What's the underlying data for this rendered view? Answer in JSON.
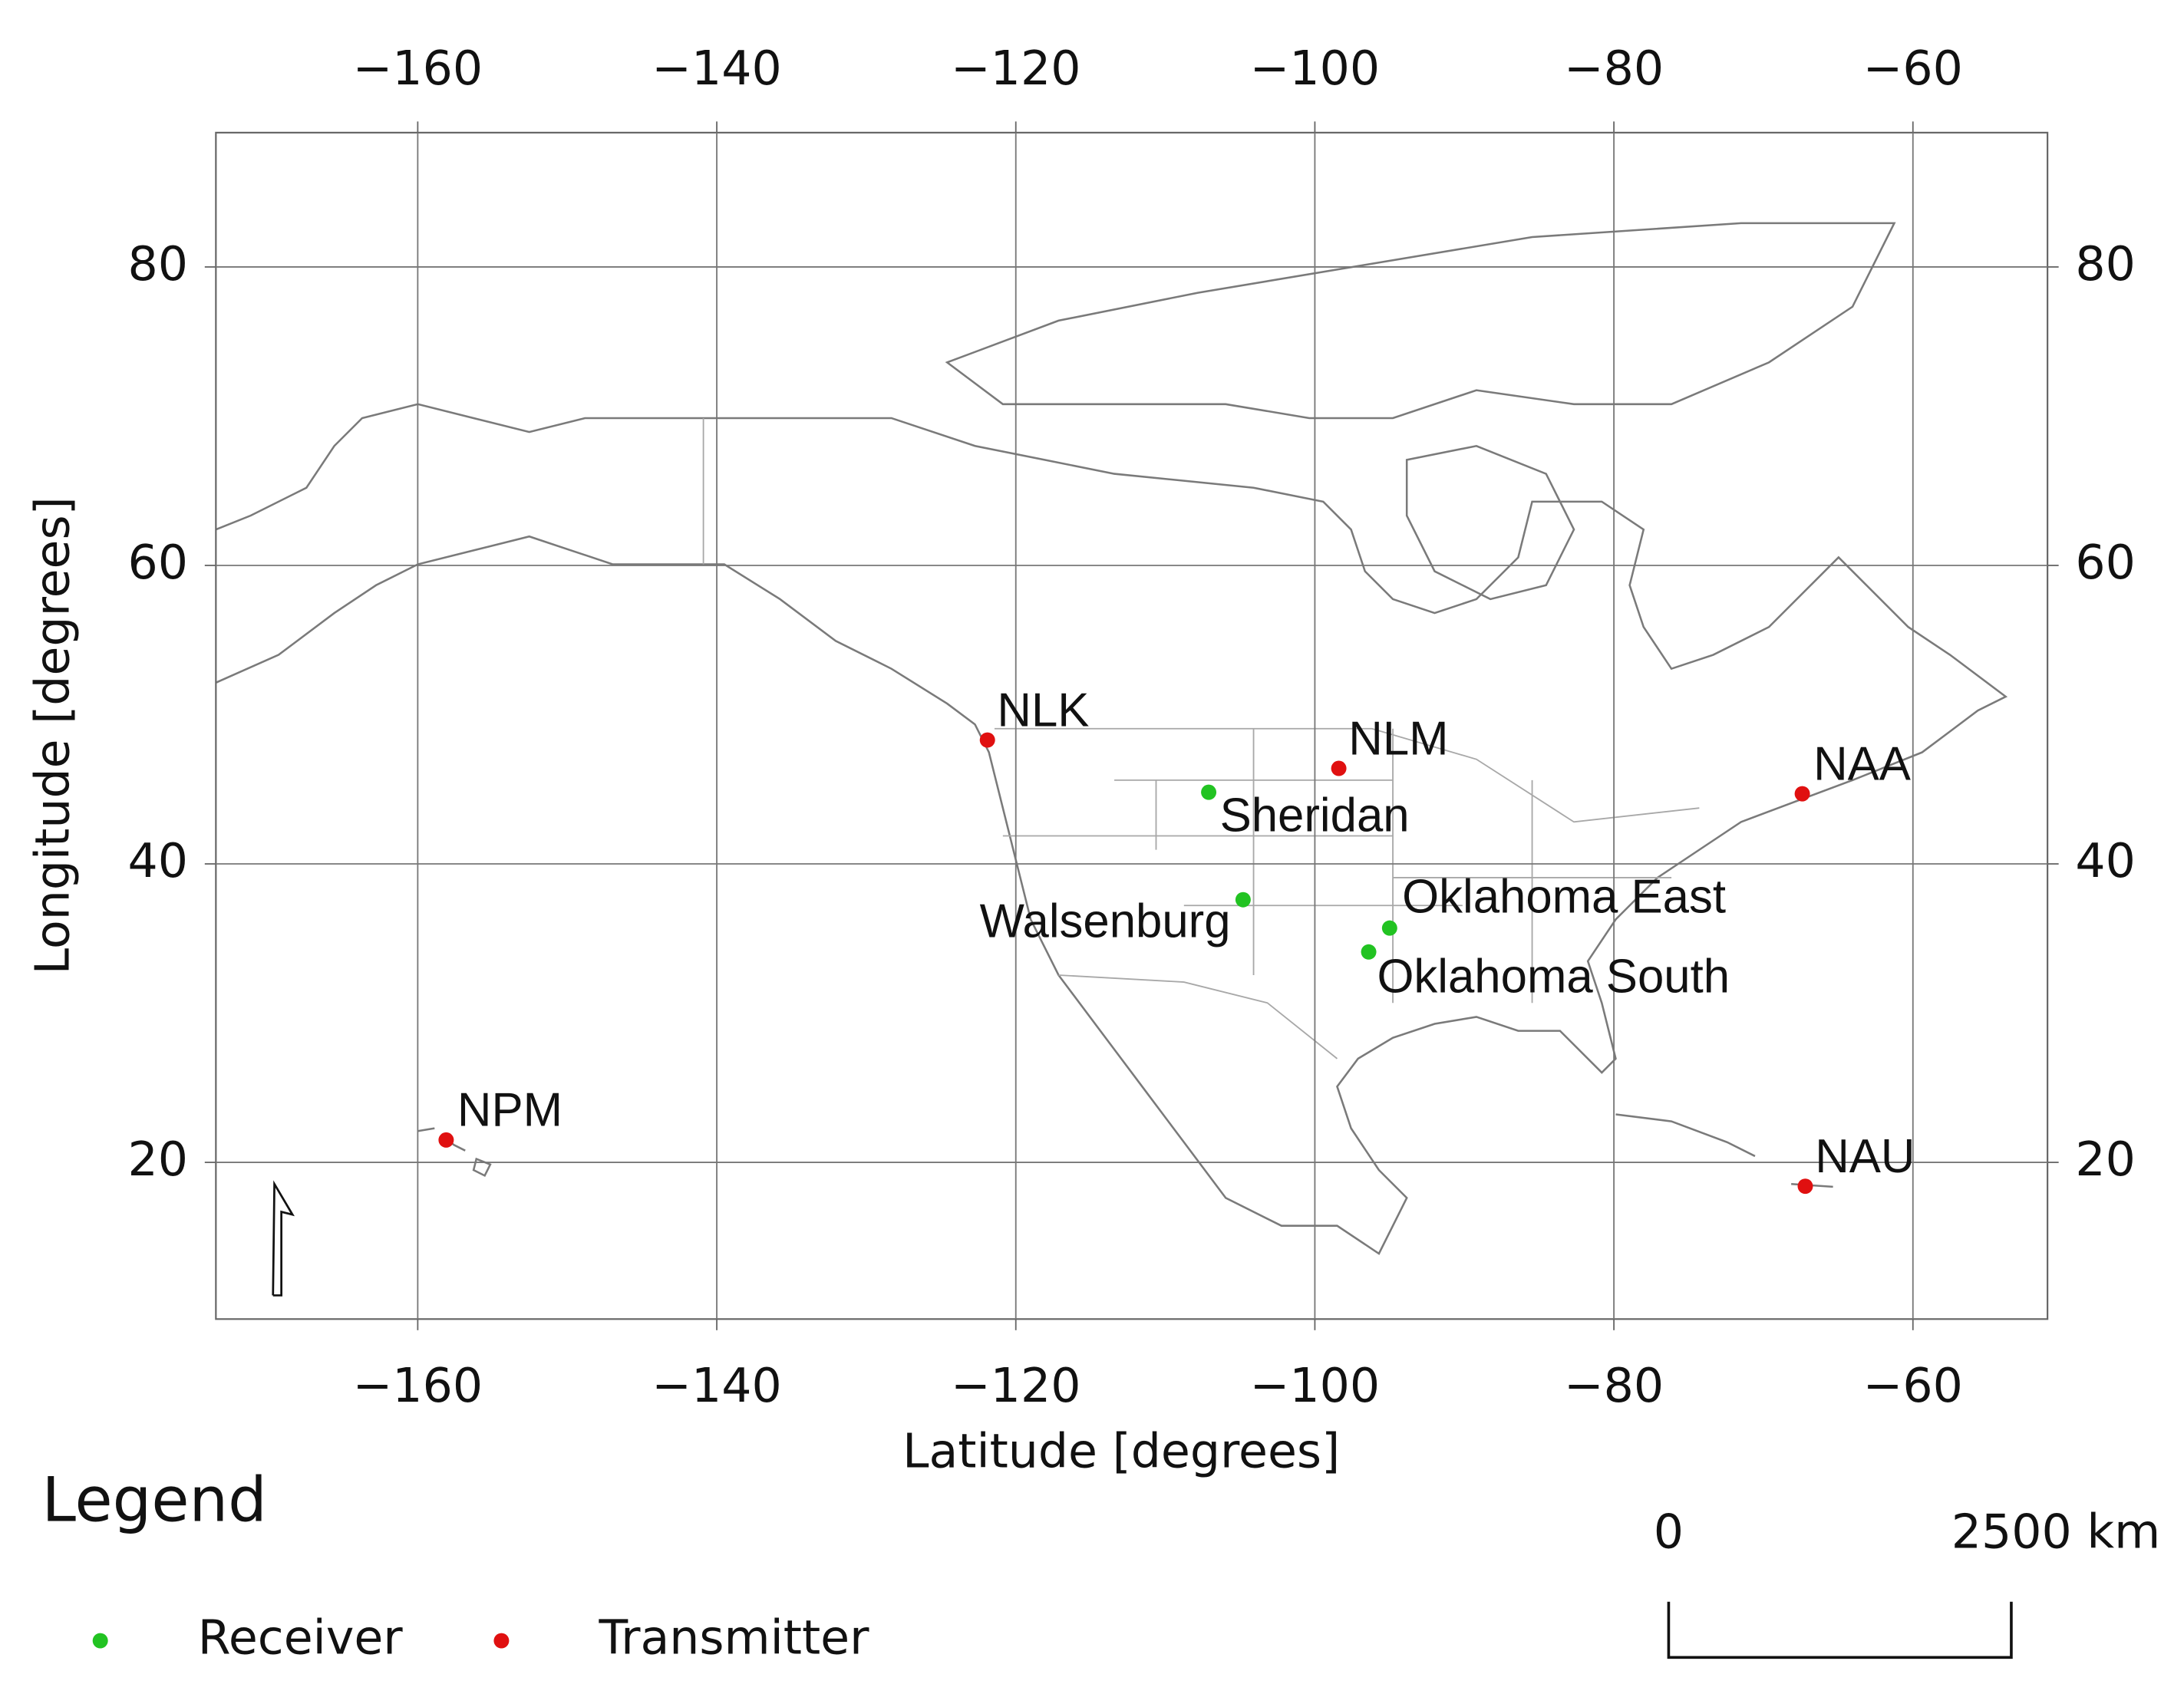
{
  "chart_data": {
    "type": "map",
    "xlabel": "Latitude [degrees]",
    "ylabel": "Longitude [degrees]",
    "xlim": [
      -173.5,
      -51
    ],
    "ylim": [
      9.5,
      89
    ],
    "xticks": [
      {
        "value": -160,
        "label": "−160"
      },
      {
        "value": -140,
        "label": "−140"
      },
      {
        "value": -120,
        "label": "−120"
      },
      {
        "value": -100,
        "label": "−100"
      },
      {
        "value": -80,
        "label": "−80"
      },
      {
        "value": -60,
        "label": "−60"
      }
    ],
    "yticks": [
      20,
      40,
      60,
      80
    ],
    "grid": true,
    "legend_title": "Legend",
    "series": [
      {
        "name": "Receiver",
        "color": "#22c322",
        "labels": [
          "Sheridan",
          "Walsenburg",
          "Oklahoma East",
          "Oklahoma South"
        ],
        "x": [
          -107.1,
          -104.8,
          -95.0,
          -96.4
        ],
        "y": [
          44.8,
          37.6,
          35.7,
          34.1
        ]
      },
      {
        "name": "Transmitter",
        "color": "#e01010",
        "labels": [
          "NLK",
          "NLM",
          "NAA",
          "NPM",
          "NAU"
        ],
        "x": [
          -121.9,
          -98.4,
          -67.4,
          -158.1,
          -67.2
        ],
        "y": [
          48.3,
          46.4,
          44.7,
          21.5,
          18.4
        ]
      }
    ],
    "scale_bar": {
      "labels": [
        "0",
        "2500 km"
      ]
    }
  }
}
